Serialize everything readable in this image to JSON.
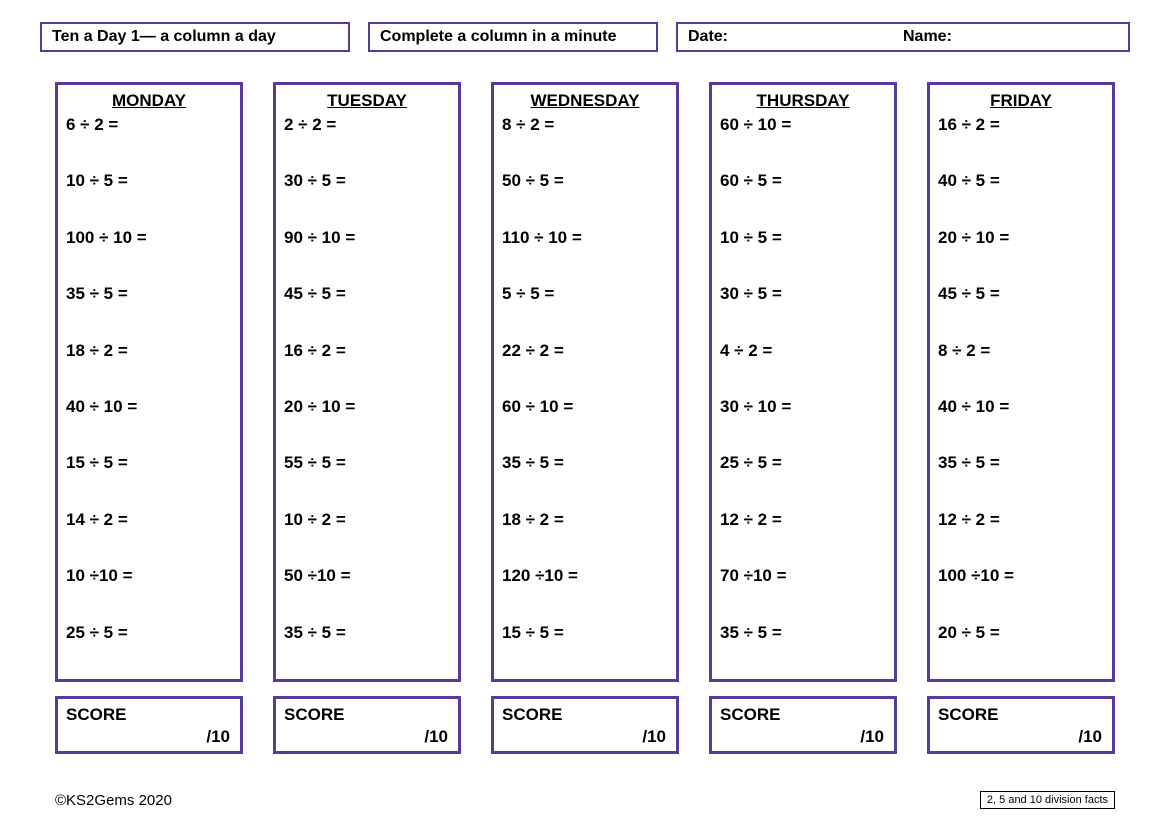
{
  "header": {
    "box1": "Ten a Day 1— a column a day",
    "box2": "Complete a column in a minute",
    "box3_date": "Date:",
    "box3_name": "Name:"
  },
  "days": [
    {
      "title": "MONDAY",
      "problems": [
        "6 ÷ 2 =",
        "10 ÷ 5 =",
        "100 ÷ 10 =",
        "35 ÷ 5 =",
        "18 ÷ 2 =",
        "40 ÷ 10 =",
        "15 ÷ 5 =",
        "14 ÷ 2 =",
        "10 ÷10 =",
        "25 ÷ 5 ="
      ]
    },
    {
      "title": "TUESDAY",
      "problems": [
        "2 ÷ 2 =",
        "30 ÷ 5 =",
        "90 ÷ 10 =",
        "45 ÷ 5 =",
        "16 ÷ 2 =",
        "20 ÷ 10 =",
        "55 ÷ 5 =",
        "10 ÷ 2 =",
        "50 ÷10 =",
        "35 ÷ 5 ="
      ]
    },
    {
      "title": "WEDNESDAY",
      "problems": [
        "8 ÷ 2 =",
        "50 ÷ 5 =",
        "110 ÷ 10 =",
        "5 ÷ 5 =",
        "22 ÷ 2 =",
        "60 ÷ 10 =",
        "35 ÷ 5 =",
        "18 ÷ 2 =",
        "120 ÷10 =",
        "15 ÷ 5 ="
      ]
    },
    {
      "title": "THURSDAY",
      "problems": [
        "60 ÷ 10 =",
        "60 ÷ 5 =",
        "10 ÷ 5 =",
        "30 ÷ 5 =",
        "4 ÷ 2 =",
        "30 ÷ 10 =",
        "25 ÷ 5 =",
        "12 ÷ 2 =",
        "70 ÷10 =",
        "35 ÷ 5 ="
      ]
    },
    {
      "title": "FRIDAY",
      "problems": [
        "16 ÷ 2 =",
        "40 ÷ 5 =",
        "20 ÷ 10 =",
        "45 ÷ 5 =",
        "8 ÷ 2 =",
        "40 ÷ 10 =",
        "35 ÷ 5 =",
        "12 ÷ 2 =",
        "100 ÷10 =",
        "20 ÷ 5 ="
      ]
    }
  ],
  "score": {
    "label": "SCORE",
    "out_of": "/10"
  },
  "footer": {
    "copyright": "©KS2Gems 2020",
    "note": "2, 5 and 10 division facts"
  },
  "style": {
    "border_color": "#5b3a9e",
    "background": "#ffffff",
    "font_family": "Comic Sans MS",
    "title_fontsize": 17,
    "problem_fontsize": 17
  }
}
